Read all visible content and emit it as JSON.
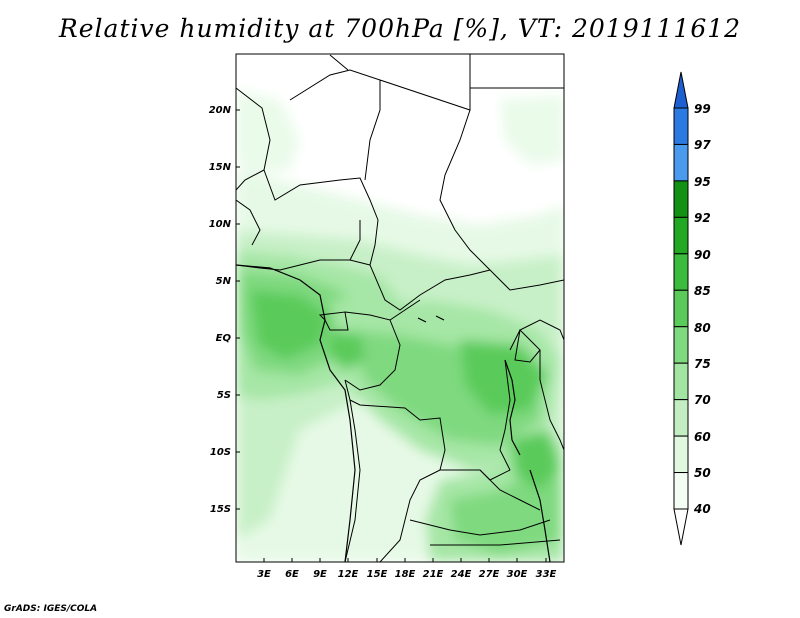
{
  "title": "Relative humidity at 700hPa [%], VT: 2019111612",
  "credit": "GrADS: IGES/COLA",
  "map": {
    "lat_labels": [
      "20N",
      "15N",
      "10N",
      "5N",
      "EQ",
      "5S",
      "10S",
      "15S"
    ],
    "lon_labels": [
      "3E",
      "6E",
      "9E",
      "12E",
      "15E",
      "18E",
      "21E",
      "24E",
      "27E",
      "30E",
      "33E"
    ]
  },
  "colorbar": {
    "levels": [
      "99",
      "97",
      "95",
      "92",
      "90",
      "85",
      "80",
      "75",
      "70",
      "60",
      "50",
      "40"
    ],
    "colors": [
      "#1b5fd0",
      "#2a7ae2",
      "#4a9aee",
      "#129112",
      "#22a822",
      "#3cbc3c",
      "#5acb5a",
      "#7fd97f",
      "#a2e5a2",
      "#c2eec2",
      "#e0f8e0",
      "#f3fdf3",
      "#ffffff"
    ]
  }
}
